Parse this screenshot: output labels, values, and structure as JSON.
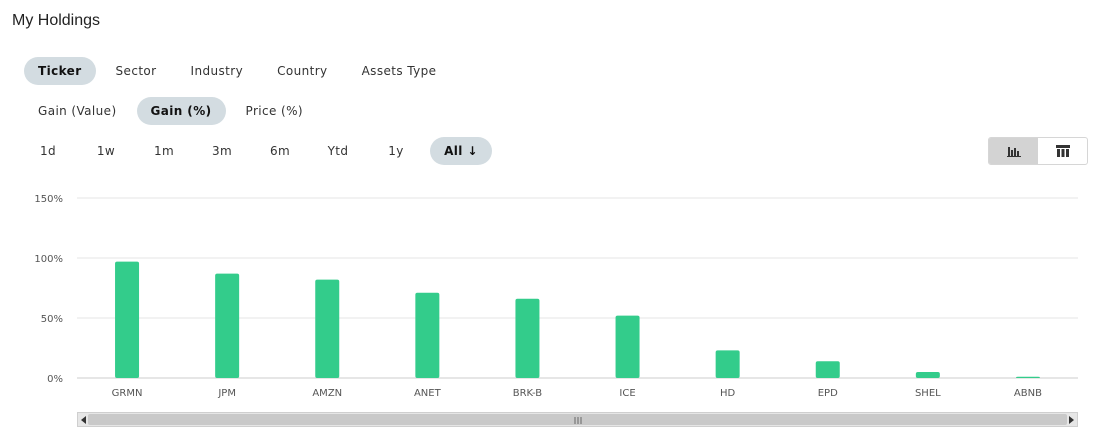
{
  "header": {
    "title": "My Holdings"
  },
  "group_tabs": [
    "Ticker",
    "Sector",
    "Industry",
    "Country",
    "Assets Type"
  ],
  "group_active": 0,
  "metric_tabs": [
    "Gain (Value)",
    "Gain (%)",
    "Price (%)"
  ],
  "metric_active": 1,
  "period_tabs": [
    "1d",
    "1w",
    "1m",
    "3m",
    "6m",
    "Ytd",
    "1y",
    "All"
  ],
  "period_active": 7,
  "view_toggle": {
    "active": "bar-chart-icon"
  },
  "colors": {
    "bar": "#33cc8b",
    "grid": "#e6e6e6",
    "axis": "#cccccc",
    "text": "#555555"
  },
  "chart_data": {
    "type": "bar",
    "categories": [
      "GRMN",
      "JPM",
      "AMZN",
      "ANET",
      "BRK-B",
      "ICE",
      "HD",
      "EPD",
      "SHEL",
      "ABNB"
    ],
    "values": [
      97,
      87,
      82,
      71,
      66,
      52,
      23,
      14,
      5,
      1
    ],
    "yticks": [
      "0%",
      "50%",
      "100%",
      "150%"
    ],
    "ylim": [
      0,
      150
    ],
    "grid": true
  }
}
